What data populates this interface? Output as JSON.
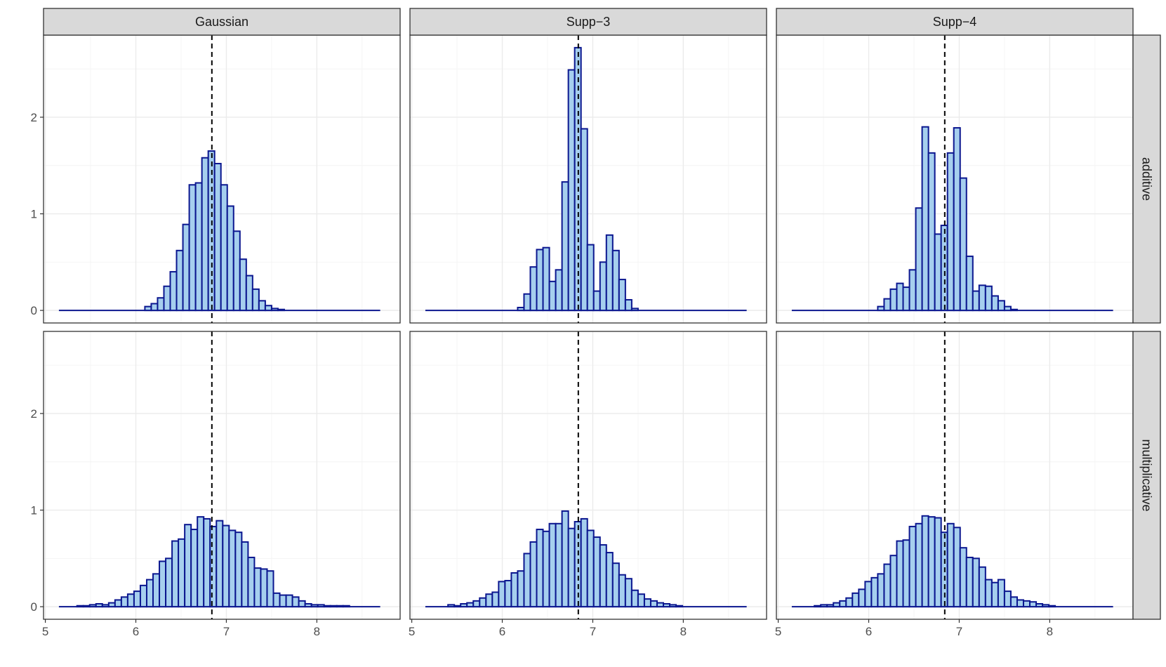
{
  "chart_data": {
    "type": "bar",
    "subtype": "faceted-histogram",
    "title": "",
    "xlabel": "",
    "ylabel": "",
    "facet_columns": [
      "Gaussian",
      "Supp−3",
      "Supp−4"
    ],
    "facet_rows": [
      "additive",
      "multiplicative"
    ],
    "xlim": [
      4.98,
      8.92
    ],
    "ylim": [
      -0.13,
      2.85
    ],
    "x_ticks": [
      5,
      6,
      7,
      8
    ],
    "x_tick_labels": [
      "5",
      "6",
      "7",
      "8"
    ],
    "y_ticks": [
      0,
      1,
      2
    ],
    "y_tick_labels": [
      "0",
      "1",
      "2"
    ],
    "reference_line_x": 6.84,
    "reference_line_style": "dashed",
    "bar_fill": "#a6cfee",
    "bar_outline": "#0b168f",
    "range_start": 5.15,
    "bin_start": 6.1,
    "bin_width": 0.07,
    "range_end": 8.7,
    "grid": true,
    "panels": [
      {
        "column": "Gaussian",
        "row": "additive",
        "bin_start": 6.1,
        "values": [
          0.04,
          0.07,
          0.13,
          0.25,
          0.4,
          0.62,
          0.89,
          1.3,
          1.32,
          1.58,
          1.65,
          1.52,
          1.3,
          1.08,
          0.82,
          0.53,
          0.36,
          0.22,
          0.1,
          0.05,
          0.02,
          0.01
        ]
      },
      {
        "column": "Supp−3",
        "row": "additive",
        "bin_start": 6.17,
        "values": [
          0.03,
          0.17,
          0.45,
          0.63,
          0.65,
          0.3,
          0.42,
          1.33,
          2.49,
          2.72,
          1.88,
          0.68,
          0.2,
          0.5,
          0.78,
          0.62,
          0.32,
          0.11,
          0.02
        ]
      },
      {
        "column": "Supp−4",
        "row": "additive",
        "bin_start": 6.1,
        "values": [
          0.04,
          0.12,
          0.22,
          0.28,
          0.24,
          0.42,
          1.06,
          1.9,
          1.63,
          0.79,
          0.88,
          1.63,
          1.89,
          1.37,
          0.56,
          0.2,
          0.26,
          0.25,
          0.15,
          0.1,
          0.04,
          0.01
        ]
      },
      {
        "column": "Gaussian",
        "row": "multiplicative",
        "bin_start": 5.35,
        "values": [
          0.01,
          0.01,
          0.02,
          0.03,
          0.02,
          0.04,
          0.07,
          0.1,
          0.13,
          0.16,
          0.22,
          0.28,
          0.34,
          0.47,
          0.5,
          0.68,
          0.7,
          0.85,
          0.8,
          0.93,
          0.91,
          0.83,
          0.89,
          0.84,
          0.79,
          0.77,
          0.67,
          0.51,
          0.4,
          0.39,
          0.37,
          0.14,
          0.12,
          0.12,
          0.1,
          0.06,
          0.03,
          0.02,
          0.02,
          0.01,
          0.01,
          0.01,
          0.01
        ]
      },
      {
        "column": "Supp−3",
        "row": "multiplicative",
        "bin_start": 5.4,
        "values": [
          0.02,
          0.01,
          0.03,
          0.04,
          0.06,
          0.09,
          0.13,
          0.15,
          0.26,
          0.27,
          0.35,
          0.37,
          0.55,
          0.67,
          0.8,
          0.78,
          0.86,
          0.86,
          0.99,
          0.81,
          0.88,
          0.91,
          0.79,
          0.72,
          0.64,
          0.56,
          0.45,
          0.33,
          0.29,
          0.17,
          0.13,
          0.08,
          0.06,
          0.04,
          0.03,
          0.02,
          0.01
        ]
      },
      {
        "column": "Supp−4",
        "row": "multiplicative",
        "bin_start": 5.4,
        "values": [
          0.01,
          0.02,
          0.02,
          0.04,
          0.06,
          0.09,
          0.14,
          0.18,
          0.26,
          0.3,
          0.34,
          0.44,
          0.53,
          0.68,
          0.69,
          0.83,
          0.86,
          0.94,
          0.93,
          0.92,
          0.77,
          0.86,
          0.82,
          0.61,
          0.51,
          0.5,
          0.41,
          0.28,
          0.25,
          0.28,
          0.16,
          0.1,
          0.07,
          0.06,
          0.05,
          0.03,
          0.02,
          0.01
        ]
      }
    ]
  }
}
